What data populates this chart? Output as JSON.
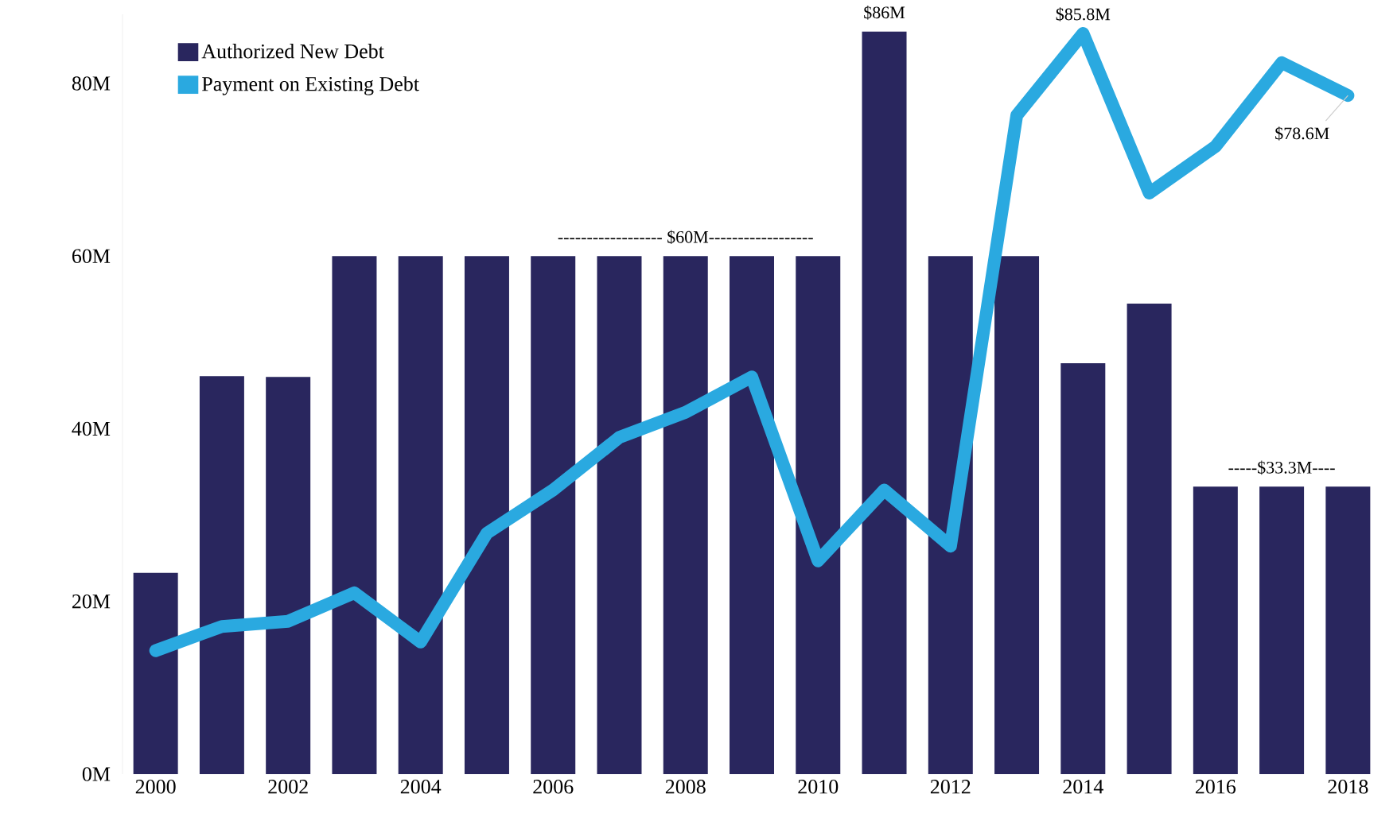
{
  "chart_data": {
    "type": "bar",
    "x": [
      2000,
      2001,
      2002,
      2003,
      2004,
      2005,
      2006,
      2007,
      2008,
      2009,
      2010,
      2011,
      2012,
      2013,
      2014,
      2015,
      2016,
      2017,
      2018
    ],
    "series": [
      {
        "name": "Authorized New Debt",
        "color": "#29265e",
        "values": [
          23.3,
          46.1,
          46,
          60,
          60,
          60,
          60,
          60,
          60,
          60,
          60,
          86,
          60,
          60,
          47.6,
          54.5,
          33.3,
          33.3,
          33.3
        ]
      },
      {
        "name": "Payment on Existing Debt",
        "type": "line",
        "color": "#2aa9e0",
        "values": [
          14.3,
          17.1,
          17.7,
          21,
          15.3,
          27.9,
          32.9,
          39,
          41.9,
          46,
          24.7,
          32.9,
          26.4,
          76.3,
          85.8,
          67.3,
          72.7,
          82.4,
          78.6
        ]
      }
    ],
    "xlim": [
      1999.5,
      2018.5
    ],
    "xticks": [
      2000,
      2002,
      2004,
      2006,
      2008,
      2010,
      2012,
      2014,
      2016,
      2018
    ],
    "ylim": [
      0,
      88
    ],
    "yticks": [
      {
        "value": 0,
        "label": "0M"
      },
      {
        "value": 20,
        "label": "20M"
      },
      {
        "value": 40,
        "label": "40M"
      },
      {
        "value": 60,
        "label": "60M"
      },
      {
        "value": 80,
        "label": "80M"
      }
    ],
    "legend": "top left",
    "annotations": [
      {
        "text": "$86M",
        "x": 2011,
        "y": 86
      },
      {
        "text": "$85.8M",
        "x": 2014,
        "y": 85.8
      },
      {
        "text": "$78.6M",
        "x": 2018,
        "y": 78.6
      },
      {
        "text": "------------------ $60M------------------",
        "x": 2008,
        "y": 60
      },
      {
        "text": "-----$33.3M----",
        "x": 2017,
        "y": 33.3
      }
    ]
  }
}
